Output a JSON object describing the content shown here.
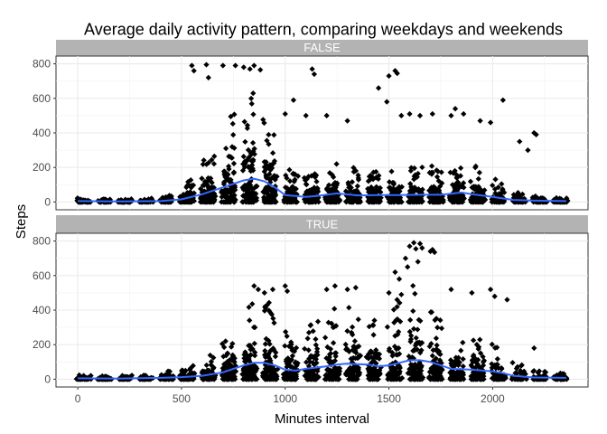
{
  "chart_data": {
    "type": "scatter",
    "title": "Average daily activity pattern, comparing weekdays and weekends",
    "xlabel": "Minutes interval",
    "ylabel": "Steps",
    "xlim": [
      -105,
      2460
    ],
    "ylim": [
      -45,
      845
    ],
    "x_ticks": [
      "0",
      "500",
      "1000",
      "1500",
      "2000"
    ],
    "y_ticks": [
      "0",
      "200",
      "400",
      "600",
      "800"
    ],
    "grid": true,
    "colors": {
      "points": "#000000",
      "smooth": "#3366FF",
      "strip": "#B3B3B3",
      "grid": "#EBEBEB",
      "border": "#333333"
    },
    "panels": [
      {
        "strip": "FALSE",
        "smooth": [
          [
            0,
            5
          ],
          [
            200,
            3
          ],
          [
            400,
            5
          ],
          [
            500,
            15
          ],
          [
            600,
            45
          ],
          [
            700,
            85
          ],
          [
            800,
            125
          ],
          [
            850,
            135
          ],
          [
            900,
            120
          ],
          [
            950,
            85
          ],
          [
            1000,
            40
          ],
          [
            1100,
            30
          ],
          [
            1150,
            35
          ],
          [
            1250,
            50
          ],
          [
            1350,
            38
          ],
          [
            1450,
            40
          ],
          [
            1550,
            40
          ],
          [
            1650,
            42
          ],
          [
            1750,
            42
          ],
          [
            1800,
            48
          ],
          [
            1850,
            55
          ],
          [
            1900,
            45
          ],
          [
            2000,
            30
          ],
          [
            2100,
            12
          ],
          [
            2200,
            8
          ],
          [
            2355,
            5
          ]
        ],
        "outliers": [
          [
            550,
            790
          ],
          [
            560,
            760
          ],
          [
            620,
            795
          ],
          [
            630,
            720
          ],
          [
            700,
            790
          ],
          [
            760,
            790
          ],
          [
            800,
            780
          ],
          [
            830,
            770
          ],
          [
            850,
            790
          ],
          [
            880,
            765
          ],
          [
            1130,
            770
          ],
          [
            1140,
            740
          ],
          [
            1500,
            730
          ],
          [
            1530,
            760
          ],
          [
            1540,
            745
          ],
          [
            1450,
            660
          ],
          [
            1490,
            580
          ],
          [
            2050,
            590
          ],
          [
            2200,
            400
          ],
          [
            2210,
            390
          ],
          [
            1800,
            500
          ],
          [
            1820,
            540
          ],
          [
            1860,
            510
          ],
          [
            1040,
            590
          ],
          [
            1000,
            510
          ],
          [
            1100,
            500
          ],
          [
            1200,
            500
          ],
          [
            1300,
            470
          ],
          [
            1560,
            500
          ],
          [
            1600,
            510
          ],
          [
            1650,
            500
          ],
          [
            1710,
            510
          ],
          [
            1940,
            470
          ],
          [
            1990,
            460
          ],
          [
            2130,
            350
          ],
          [
            2170,
            300
          ]
        ]
      },
      {
        "strip": "TRUE",
        "smooth": [
          [
            0,
            5
          ],
          [
            200,
            4
          ],
          [
            400,
            8
          ],
          [
            500,
            12
          ],
          [
            600,
            20
          ],
          [
            700,
            40
          ],
          [
            800,
            80
          ],
          [
            850,
            95
          ],
          [
            900,
            95
          ],
          [
            950,
            80
          ],
          [
            1000,
            55
          ],
          [
            1050,
            50
          ],
          [
            1100,
            60
          ],
          [
            1200,
            75
          ],
          [
            1250,
            85
          ],
          [
            1300,
            90
          ],
          [
            1400,
            85
          ],
          [
            1450,
            75
          ],
          [
            1500,
            80
          ],
          [
            1550,
            95
          ],
          [
            1600,
            110
          ],
          [
            1650,
            110
          ],
          [
            1700,
            100
          ],
          [
            1750,
            80
          ],
          [
            1800,
            60
          ],
          [
            1900,
            55
          ],
          [
            2000,
            45
          ],
          [
            2050,
            35
          ],
          [
            2100,
            20
          ],
          [
            2200,
            10
          ],
          [
            2355,
            8
          ]
        ],
        "outliers": [
          [
            1600,
            770
          ],
          [
            1620,
            790
          ],
          [
            1630,
            755
          ],
          [
            1650,
            785
          ],
          [
            1660,
            760
          ],
          [
            1700,
            740
          ],
          [
            1710,
            750
          ],
          [
            1720,
            735
          ],
          [
            1580,
            700
          ],
          [
            1590,
            650
          ],
          [
            1640,
            680
          ],
          [
            1530,
            620
          ],
          [
            1550,
            580
          ],
          [
            850,
            540
          ],
          [
            870,
            520
          ],
          [
            900,
            500
          ],
          [
            940,
            520
          ],
          [
            1000,
            540
          ],
          [
            1010,
            510
          ],
          [
            1200,
            520
          ],
          [
            1240,
            540
          ],
          [
            1300,
            520
          ],
          [
            1340,
            530
          ],
          [
            1500,
            500
          ],
          [
            1560,
            490
          ],
          [
            1800,
            520
          ],
          [
            1900,
            500
          ],
          [
            1990,
            520
          ],
          [
            2010,
            480
          ],
          [
            2070,
            460
          ],
          [
            2200,
            180
          ]
        ]
      }
    ]
  }
}
